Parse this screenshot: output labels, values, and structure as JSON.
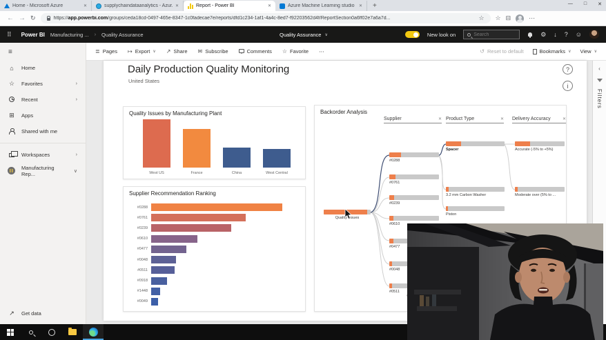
{
  "browser": {
    "tabs": [
      {
        "title": "Home - Microsoft Azure",
        "icon": "azure-icon"
      },
      {
        "title": "supplychaindataanalytics - Azur...",
        "icon": "azure-resource-icon"
      },
      {
        "title": "Report - Power BI",
        "icon": "powerbi-chart-icon"
      },
      {
        "title": "Azure Machine Learning studio",
        "icon": "azure-ml-icon"
      }
    ],
    "new_tab_glyph": "+",
    "window_controls": {
      "minimize": "—",
      "maximize": "□",
      "close": "✕"
    },
    "address_url": "https://app.powerbi.com/groups/ceda18cd-0497-465e-8347-1c0fadecae7e/reports/dfd1c234-1af1-4a4c-8ed7-f92203562d4f/ReportSection0a6ff02e7a6a7d...",
    "close_glyph": "✕"
  },
  "pbi_nav": {
    "app_name": "Power BI",
    "breadcrumb_workspace": "Manufacturing ...",
    "breadcrumb_sep": "›",
    "breadcrumb_page": "Quality Assurance",
    "center_title": "Quality Assurance",
    "new_look_label": "New look on",
    "search_placeholder": "Search"
  },
  "toolbar": {
    "pages": "Pages",
    "export": "Export",
    "share": "Share",
    "subscribe": "Subscribe",
    "comments": "Comments",
    "favorite": "Favorite",
    "more": "⋯",
    "reset": "Reset to default",
    "bookmarks": "Bookmarks",
    "view": "View"
  },
  "sidebar": {
    "items": [
      {
        "label": "Home"
      },
      {
        "label": "Favorites",
        "chevron": "›"
      },
      {
        "label": "Recent",
        "chevron": "›"
      },
      {
        "label": "Apps"
      },
      {
        "label": "Shared with me"
      },
      {
        "label": "Workspaces",
        "chevron": "›"
      },
      {
        "label": "Manufacturing Rep...",
        "chevron": "∨"
      }
    ],
    "get_data": "Get data"
  },
  "report": {
    "title": "Daily Production Quality Monitoring",
    "subtitle": "United States",
    "help_glyph": "?",
    "info_glyph": "i"
  },
  "filters_rail": {
    "label": "Filters",
    "collapse_glyph": "‹"
  },
  "icons": {
    "waffle": "⠿",
    "back": "←",
    "forward": "→",
    "reload": "↻",
    "star": "☆",
    "favorites_bar": "☆",
    "collections": "⊟",
    "overflow": "⋯",
    "pages": "≣",
    "export": "↦",
    "share": "↗",
    "favorite": "☆",
    "reset": "↺",
    "gear": "⚙",
    "download": "↓",
    "help": "?",
    "smiley": "☺",
    "home": "⌂",
    "favorites": "☆",
    "apps": "⊞",
    "get_data": "↗",
    "chevron_down": "∨"
  },
  "colors": {
    "accent_yellow": "#f2c811",
    "tree_orange": "#ee7f4b",
    "steel_blue": "#3e5c8e"
  },
  "chart_data": [
    {
      "type": "bar",
      "title": "Quality Issues by Manufacturing Plant",
      "categories": [
        "West US",
        "France",
        "China",
        "West Central"
      ],
      "values": [
        100,
        80,
        42,
        38
      ],
      "colors": [
        "#dd6b4f",
        "#f28a3f",
        "#3e5c8e",
        "#3e5c8e"
      ],
      "ylim": [
        0,
        100
      ],
      "grid": false,
      "legend": "none"
    },
    {
      "type": "bar",
      "orientation": "horizontal",
      "title": "Supplier Recommendation Ranking",
      "categories": [
        "#0288",
        "#0761",
        "#0239",
        "#0610",
        "#0477",
        "#0048",
        "#0511",
        "#0918",
        "#1448",
        "#0049"
      ],
      "values": [
        100,
        72,
        61,
        35,
        27,
        19,
        18,
        12,
        7,
        5
      ],
      "colors": [
        "#f08244",
        "#d4705a",
        "#b96367",
        "#87648a",
        "#73638f",
        "#5d6196",
        "#565f99",
        "#49609f",
        "#4260a5",
        "#3c5fa8"
      ],
      "xlim": [
        0,
        100
      ],
      "grid": false,
      "legend": "none"
    },
    {
      "type": "decomposition_tree",
      "title": "Backorder Analysis",
      "levels": [
        "Supplier",
        "Product Type",
        "Delivery Accuracy"
      ],
      "close_glyph": "✕",
      "root": {
        "label": "Quality Issues",
        "fill": 92
      },
      "suppliers": [
        {
          "label": "#0288",
          "fill": 24
        },
        {
          "label": "#0761",
          "fill": 13
        },
        {
          "label": "#0239",
          "fill": 10
        },
        {
          "label": "#0610",
          "fill": 9
        },
        {
          "label": "#0477",
          "fill": 8
        },
        {
          "label": "#0048",
          "fill": 6
        },
        {
          "label": "#0511",
          "fill": 5
        }
      ],
      "product_types": [
        {
          "label": "Spacer",
          "fill": 26,
          "bold": true
        },
        {
          "label": "3.2 mm Carbon Washer",
          "fill": 5
        },
        {
          "label": "Piston",
          "fill": 4
        }
      ],
      "delivery_accuracy": [
        {
          "label": "Accurate (-5% to +5%)",
          "fill": 30
        },
        {
          "label": "Moderate over (5% to ...",
          "fill": 5
        }
      ]
    }
  ]
}
